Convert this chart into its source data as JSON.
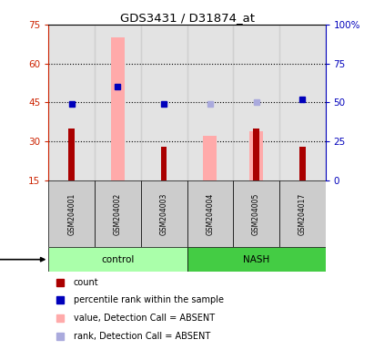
{
  "title": "GDS3431 / D31874_at",
  "samples": [
    "GSM204001",
    "GSM204002",
    "GSM204003",
    "GSM204004",
    "GSM204005",
    "GSM204017"
  ],
  "groups": [
    "control",
    "control",
    "control",
    "NASH",
    "NASH",
    "NASH"
  ],
  "count_values": [
    35,
    0,
    28,
    0,
    35,
    28
  ],
  "rank_absent": [
    false,
    false,
    false,
    true,
    true,
    false
  ],
  "pink_bar_values": [
    0,
    70,
    0,
    32,
    34,
    0
  ],
  "blue_dot_pct": [
    49,
    60,
    49,
    0,
    0,
    52
  ],
  "lavender_dot_pct": [
    0,
    0,
    0,
    49,
    50,
    0
  ],
  "left_ylim": [
    15,
    75
  ],
  "left_yticks": [
    15,
    30,
    45,
    60,
    75
  ],
  "right_ylim": [
    0,
    100
  ],
  "right_yticks": [
    0,
    25,
    50,
    75,
    100
  ],
  "right_yticklabels": [
    "0",
    "25",
    "50",
    "75",
    "100%"
  ],
  "hline_values": [
    30,
    45,
    60
  ],
  "left_color": "#cc2200",
  "right_color": "#0000bb",
  "pink_color": "#ffaaaa",
  "dark_red": "#aa0000",
  "control_color": "#aaffaa",
  "nash_color": "#44cc44",
  "gray_bg": "#cccccc",
  "legend_labels": [
    "count",
    "percentile rank within the sample",
    "value, Detection Call = ABSENT",
    "rank, Detection Call = ABSENT"
  ],
  "legend_colors": [
    "#aa0000",
    "#0000bb",
    "#ffaaaa",
    "#aaaadd"
  ]
}
